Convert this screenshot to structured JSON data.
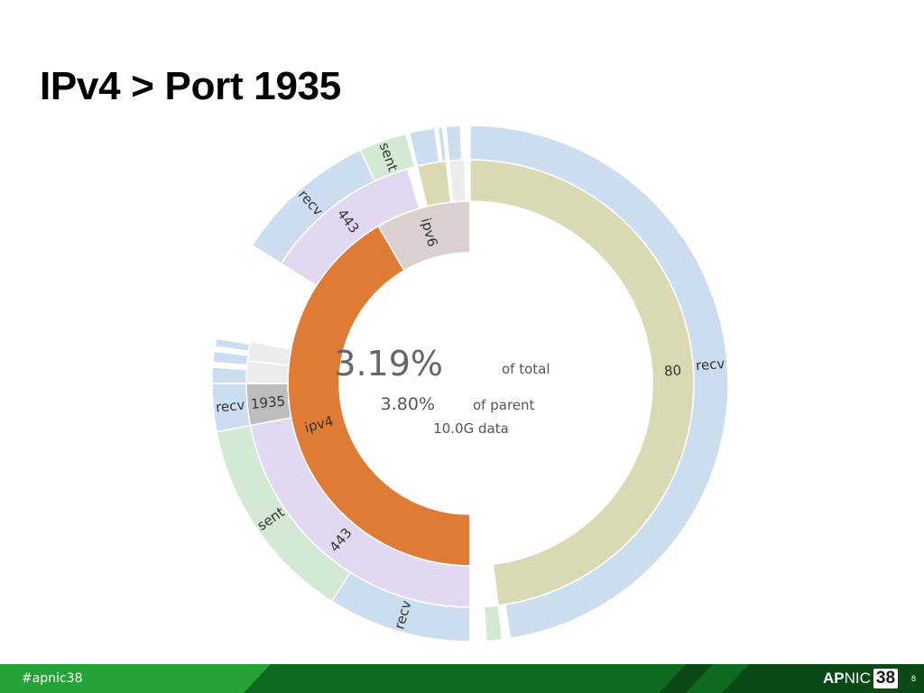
{
  "slide": {
    "title": "IPv4 > Port 1935",
    "page_number": "8"
  },
  "footer": {
    "hashtag": "#apnic38",
    "logo": {
      "ap": "AP",
      "nic": "NIC",
      "number": "38"
    }
  },
  "center": {
    "pct_total": "3.19%",
    "of_total": "of total",
    "pct_parent": "3.80%",
    "of_parent": "of parent",
    "data_size": "10.0G data"
  },
  "colors": {
    "ipv4": "#e07b35",
    "ipv6": "#d9d0cf",
    "port_443": "#e3d8f1",
    "port_80": "#d9dab4",
    "port_1935": "#bdbdbd",
    "recv": "#cdddf0",
    "sent": "#d3e9d3",
    "other": "#ececec",
    "footer_dark": "#0b4a16",
    "footer_mid": "#0e6a1e",
    "footer_light": "#26a338"
  },
  "chart_data": {
    "type": "sunburst",
    "selected_path": [
      "ipv4",
      "1935"
    ],
    "rings": [
      {
        "level": "protocol",
        "segments": [
          {
            "label": "ipv4",
            "start": 0.5,
            "end": 0.916,
            "color_key": "ipv4"
          },
          {
            "label": "ipv6",
            "start": 0.916,
            "end": 1.0,
            "color_key": "ipv6"
          }
        ]
      },
      {
        "level": "port",
        "segments": [
          {
            "label": "80",
            "start": 0.0,
            "end": 0.48,
            "color_key": "port_80"
          },
          {
            "label": "443",
            "start": 0.5,
            "end": 0.72,
            "color_key": "port_443"
          },
          {
            "label": "1935",
            "start": 0.72,
            "end": 0.75,
            "color_key": "port_1935"
          },
          {
            "label": "",
            "start": 0.75,
            "end": 0.766,
            "color_key": "other"
          },
          {
            "label": "",
            "start": 0.766,
            "end": 0.78,
            "color_key": "other"
          },
          {
            "label": "443",
            "start": 0.84,
            "end": 0.955,
            "color_key": "port_443"
          },
          {
            "label": "",
            "start": 0.962,
            "end": 0.983,
            "color_key": "port_80"
          },
          {
            "label": "",
            "start": 0.985,
            "end": 0.996,
            "color_key": "other"
          }
        ]
      },
      {
        "level": "direction",
        "segments": [
          {
            "label": "recv",
            "start": 0.0,
            "end": 0.475,
            "color_key": "recv"
          },
          {
            "label": "",
            "start": 0.48,
            "end": 0.49,
            "color_key": "sent"
          },
          {
            "label": "recv",
            "start": 0.5,
            "end": 0.59,
            "color_key": "recv"
          },
          {
            "label": "sent",
            "start": 0.59,
            "end": 0.72,
            "color_key": "sent"
          },
          {
            "label": "recv",
            "start": 0.72,
            "end": 0.75,
            "color_key": "recv"
          },
          {
            "label": "",
            "start": 0.75,
            "end": 0.76,
            "color_key": "recv"
          },
          {
            "label": "",
            "start": 0.763,
            "end": 0.77,
            "color_key": "recv"
          },
          {
            "label": "",
            "start": 0.773,
            "end": 0.778,
            "color_key": "recv"
          },
          {
            "label": "recv",
            "start": 0.84,
            "end": 0.93,
            "color_key": "recv"
          },
          {
            "label": "sent",
            "start": 0.93,
            "end": 0.96,
            "color_key": "sent"
          },
          {
            "label": "",
            "start": 0.962,
            "end": 0.978,
            "color_key": "recv"
          },
          {
            "label": "",
            "start": 0.98,
            "end": 0.983,
            "color_key": "recv"
          },
          {
            "label": "",
            "start": 0.985,
            "end": 0.994,
            "color_key": "recv"
          }
        ]
      }
    ]
  }
}
